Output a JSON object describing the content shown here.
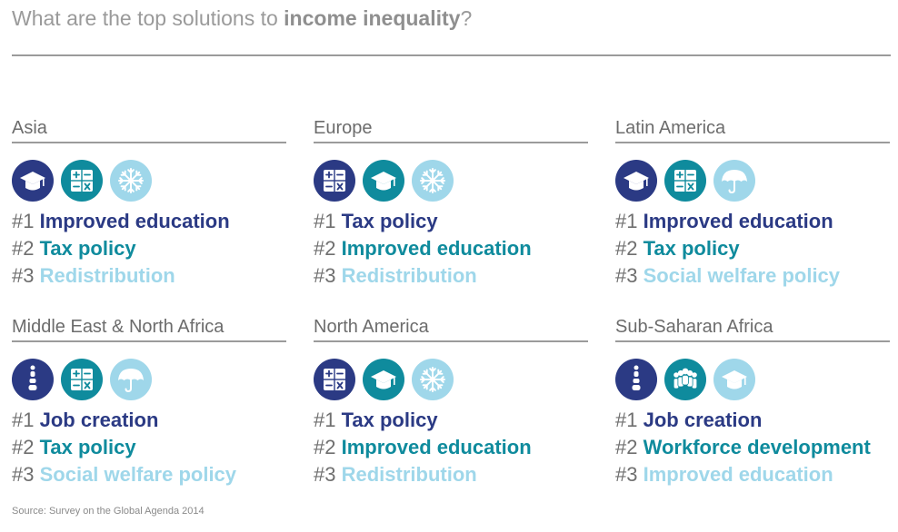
{
  "title": {
    "prefix": "What are the top solutions to ",
    "emphasis": "income inequality",
    "suffix": "?"
  },
  "colors": {
    "rank1": "#2b3a84",
    "rank2": "#0f8b9d",
    "rank3": "#9fd7ea"
  },
  "regions": [
    {
      "name": "Asia",
      "icons": [
        "graduation-cap-icon",
        "calculator-icon",
        "snowflake-icon"
      ],
      "ranks": [
        {
          "num": "#1",
          "label": "Improved education"
        },
        {
          "num": "#2",
          "label": "Tax policy"
        },
        {
          "num": "#3",
          "label": "Redistribution"
        }
      ]
    },
    {
      "name": "Europe",
      "icons": [
        "calculator-icon",
        "graduation-cap-icon",
        "snowflake-icon"
      ],
      "ranks": [
        {
          "num": "#1",
          "label": "Tax policy"
        },
        {
          "num": "#2",
          "label": "Improved education"
        },
        {
          "num": "#3",
          "label": "Redistribution"
        }
      ]
    },
    {
      "name": "Latin America",
      "icons": [
        "graduation-cap-icon",
        "calculator-icon",
        "umbrella-icon"
      ],
      "ranks": [
        {
          "num": "#1",
          "label": "Improved education"
        },
        {
          "num": "#2",
          "label": "Tax policy"
        },
        {
          "num": "#3",
          "label": "Social welfare policy"
        }
      ]
    },
    {
      "name": "Middle East & North Africa",
      "icons": [
        "job-ladder-icon",
        "calculator-icon",
        "umbrella-icon"
      ],
      "ranks": [
        {
          "num": "#1",
          "label": "Job creation"
        },
        {
          "num": "#2",
          "label": "Tax policy"
        },
        {
          "num": "#3",
          "label": "Social welfare policy"
        }
      ]
    },
    {
      "name": "North America",
      "icons": [
        "calculator-icon",
        "graduation-cap-icon",
        "snowflake-icon"
      ],
      "ranks": [
        {
          "num": "#1",
          "label": "Tax policy"
        },
        {
          "num": "#2",
          "label": "Improved education"
        },
        {
          "num": "#3",
          "label": "Redistribution"
        }
      ]
    },
    {
      "name": "Sub-Saharan Africa",
      "icons": [
        "job-ladder-icon",
        "workforce-group-icon",
        "graduation-cap-icon"
      ],
      "ranks": [
        {
          "num": "#1",
          "label": "Job creation"
        },
        {
          "num": "#2",
          "label": "Workforce development"
        },
        {
          "num": "#3",
          "label": "Improved education"
        }
      ]
    }
  ],
  "source": "Source: Survey on the Global Agenda 2014"
}
